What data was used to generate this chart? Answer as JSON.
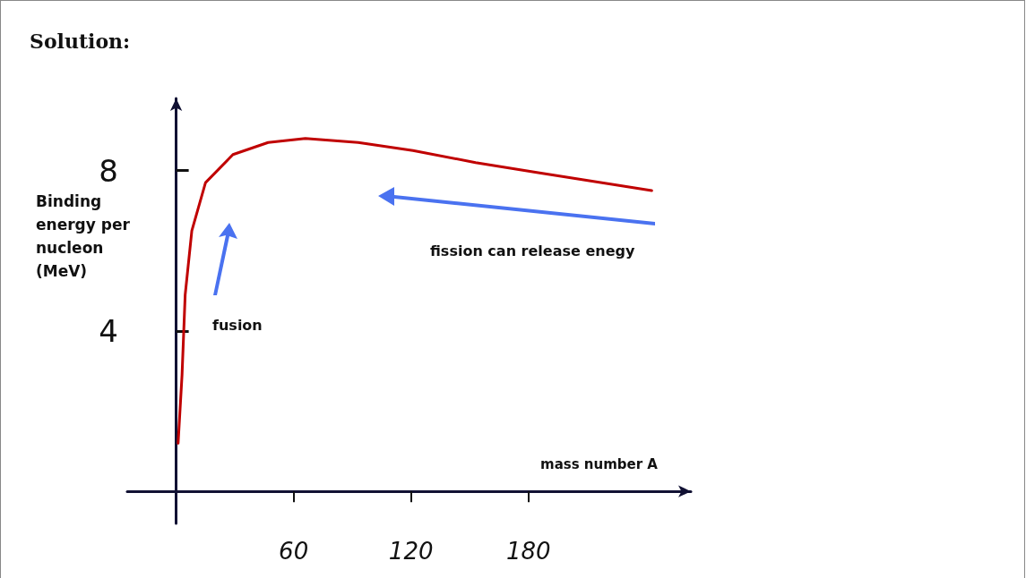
{
  "chart_data": {
    "type": "line",
    "title": "Solution:",
    "xlabel": "mass number A",
    "ylabel": "Binding energy per nucleon (MeV)",
    "x": [
      1,
      3,
      4.6,
      8,
      15,
      29,
      47,
      66,
      93,
      121,
      153,
      185,
      243
    ],
    "series": [
      {
        "color": "#c00000",
        "values": [
          1.2,
          2.9,
          4.9,
          6.5,
          7.7,
          8.4,
          8.7,
          8.8,
          8.7,
          8.5,
          8.2,
          7.95,
          7.5
        ]
      }
    ],
    "xlim": [
      -25,
      263
    ],
    "xticks": [
      60,
      120,
      180
    ],
    "ylim": [
      -0.8,
      9.8
    ],
    "yticks": [
      4,
      8
    ],
    "annotations": [
      "fusion",
      "fission can release enegy"
    ],
    "grid": false,
    "marker": "none",
    "line_style": "solid"
  }
}
